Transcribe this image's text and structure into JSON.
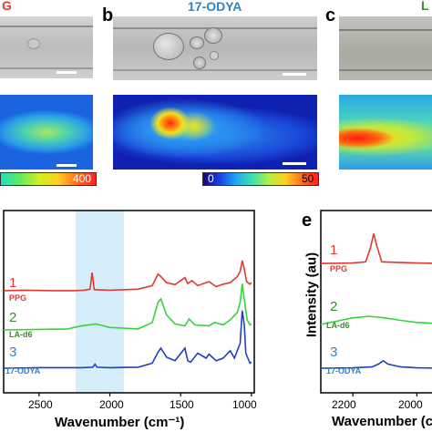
{
  "top": {
    "panel_a_title_fragment": "G",
    "panel_b_letter": "b",
    "panel_b_title": "17-ODYA",
    "panel_c_letter": "c",
    "panel_c_title_fragment": "L",
    "colorbar_a_max": "400",
    "colorbar_b_min": "0",
    "colorbar_b_max": "50",
    "colors": {
      "ppg": "#e03a2f",
      "odya": "#2a84c8",
      "la": "#3a8a2e"
    }
  },
  "panel_d": {
    "series_labels": [
      {
        "num": "1",
        "name": "PPG",
        "color": "#e03a2f"
      },
      {
        "num": "2",
        "name": "LA-d6",
        "color": "#3a8a2e"
      },
      {
        "num": "3",
        "name": "17-ODYA",
        "color": "#2a84c8"
      }
    ],
    "x_ticks": [
      "2500",
      "2000",
      "1500",
      "1000"
    ],
    "x_label": "Wavenumber (cm⁻¹)",
    "highlight_color": "#d6eefa"
  },
  "panel_e": {
    "letter": "e",
    "y_label": "Intensity (au)",
    "series_labels": [
      {
        "num": "1",
        "name": "PPG",
        "color": "#e03a2f"
      },
      {
        "num": "2",
        "name": "LA-d6",
        "color": "#3a8a2e"
      },
      {
        "num": "3",
        "name": "17-ODYA",
        "color": "#2a84c8"
      }
    ],
    "x_ticks": [
      "2200",
      "2000"
    ],
    "x_label": "Wavenumber (c"
  },
  "chart_data": [
    {
      "type": "line",
      "title": "",
      "xlabel": "Wavenumber (cm⁻¹)",
      "ylabel": "",
      "xlim": [
        2750,
        980
      ],
      "series": [
        {
          "name": "PPG",
          "x": [
            2750,
            2600,
            2400,
            2250,
            2180,
            2140,
            2125,
            2110,
            2000,
            1800,
            1700,
            1660,
            1640,
            1600,
            1540,
            1470,
            1450,
            1420,
            1380,
            1300,
            1250,
            1200,
            1150,
            1100,
            1080,
            1065,
            1050,
            1035,
            1010,
            1000
          ],
          "y": [
            0.02,
            0.03,
            0.02,
            0.02,
            0.03,
            0.05,
            0.38,
            0.04,
            0.03,
            0.05,
            0.12,
            0.35,
            0.3,
            0.18,
            0.14,
            0.28,
            0.16,
            0.22,
            0.12,
            0.2,
            0.1,
            0.15,
            0.18,
            0.3,
            0.4,
            0.62,
            0.45,
            0.2,
            0.15,
            0.18
          ]
        },
        {
          "name": "LA-d6",
          "x": [
            2750,
            2500,
            2300,
            2200,
            2100,
            2000,
            1800,
            1700,
            1660,
            1640,
            1600,
            1540,
            1470,
            1440,
            1400,
            1300,
            1260,
            1200,
            1150,
            1100,
            1080,
            1065,
            1050,
            1030,
            1010,
            1000
          ],
          "y": [
            0.0,
            0.01,
            0.02,
            0.08,
            0.12,
            0.05,
            0.02,
            0.15,
            0.55,
            0.62,
            0.3,
            0.12,
            0.08,
            0.22,
            0.1,
            0.08,
            0.15,
            0.1,
            0.2,
            0.35,
            0.55,
            0.92,
            0.6,
            0.2,
            0.1,
            0.12
          ]
        },
        {
          "name": "17-ODYA",
          "x": [
            2750,
            2500,
            2200,
            2120,
            2105,
            2090,
            2000,
            1800,
            1700,
            1660,
            1640,
            1600,
            1540,
            1470,
            1450,
            1430,
            1380,
            1320,
            1300,
            1250,
            1200,
            1150,
            1120,
            1080,
            1065,
            1050,
            1040,
            1010,
            1000
          ],
          "y": [
            0.0,
            0.01,
            0.01,
            0.02,
            0.08,
            0.02,
            0.01,
            0.02,
            0.1,
            0.32,
            0.4,
            0.22,
            0.15,
            0.4,
            0.15,
            0.12,
            0.3,
            0.2,
            0.28,
            0.15,
            0.2,
            0.35,
            0.2,
            0.5,
            1.15,
            0.85,
            0.3,
            0.1,
            0.12
          ]
        }
      ]
    },
    {
      "type": "line",
      "title": "",
      "xlabel": "Wavenumber (c",
      "ylabel": "Intensity (au)",
      "xlim": [
        2300,
        1930
      ],
      "series": [
        {
          "name": "PPG",
          "x": [
            2300,
            2200,
            2160,
            2145,
            2135,
            2125,
            2110,
            2000,
            1930
          ],
          "y": [
            0.02,
            0.03,
            0.06,
            0.4,
            0.75,
            0.45,
            0.06,
            0.03,
            0.02
          ]
        },
        {
          "name": "LA-d6",
          "x": [
            2300,
            2250,
            2200,
            2150,
            2100,
            2050,
            2000,
            1930
          ],
          "y": [
            0.0,
            0.08,
            0.16,
            0.2,
            0.16,
            0.1,
            0.05,
            0.02
          ]
        },
        {
          "name": "17-ODYA",
          "x": [
            2300,
            2200,
            2140,
            2120,
            2105,
            2090,
            2050,
            2000,
            1930
          ],
          "y": [
            0.0,
            0.01,
            0.03,
            0.1,
            0.18,
            0.1,
            0.03,
            0.01,
            0.0
          ]
        }
      ]
    }
  ]
}
